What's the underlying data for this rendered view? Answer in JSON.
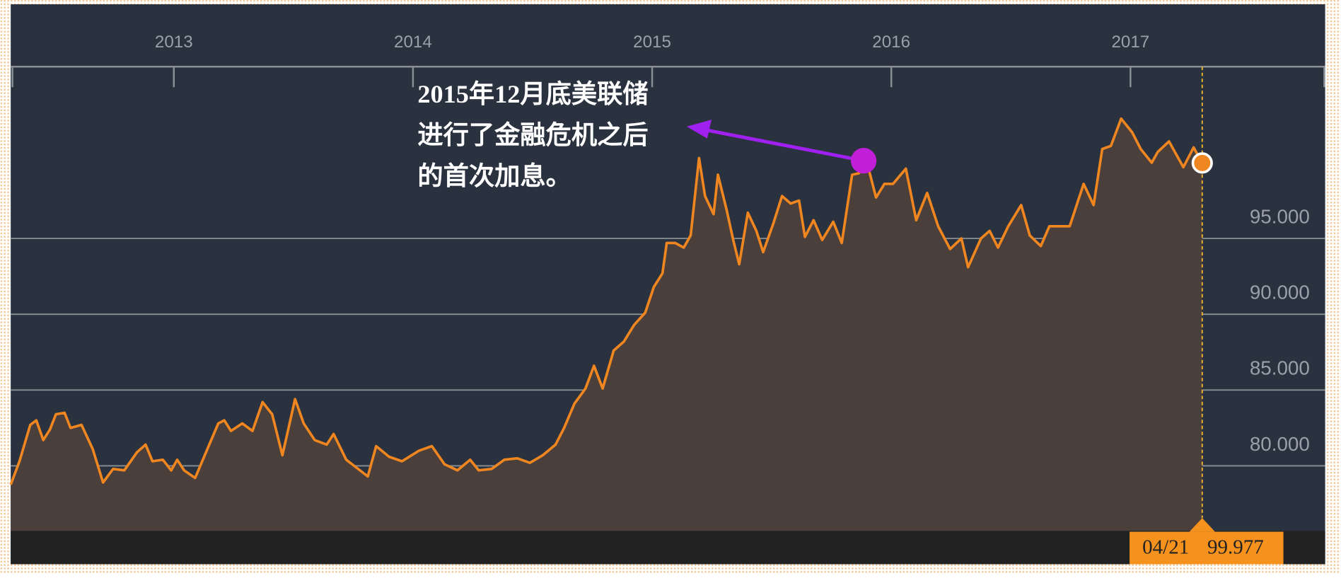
{
  "chart_data": {
    "type": "area-line",
    "x": [
      2012.318,
      2012.354,
      2012.4,
      2012.425,
      2012.454,
      2012.482,
      2012.507,
      2012.543,
      2012.568,
      2012.614,
      2012.661,
      2012.704,
      2012.746,
      2012.793,
      2012.846,
      2012.882,
      2012.911,
      2012.954,
      2012.989,
      2013.014,
      2013.043,
      2013.089,
      2013.132,
      2013.186,
      2013.211,
      2013.239,
      2013.286,
      2013.329,
      2013.371,
      2013.411,
      2013.454,
      2013.507,
      2013.543,
      2013.589,
      2013.639,
      2013.668,
      2013.721,
      2013.811,
      2013.846,
      2013.9,
      2013.954,
      2014.025,
      2014.079,
      2014.132,
      2014.186,
      2014.239,
      2014.275,
      2014.329,
      2014.382,
      2014.436,
      2014.489,
      2014.543,
      2014.596,
      2014.632,
      2014.675,
      2014.721,
      2014.757,
      2014.793,
      2014.839,
      2014.882,
      2014.925,
      2014.971,
      2015.007,
      2015.043,
      2015.061,
      2015.096,
      2015.132,
      2015.161,
      2015.196,
      2015.221,
      2015.257,
      2015.275,
      2015.311,
      2015.339,
      2015.364,
      2015.4,
      2015.436,
      2015.464,
      2015.507,
      2015.543,
      2015.579,
      2015.614,
      2015.639,
      2015.675,
      2015.711,
      2015.757,
      2015.793,
      2015.836,
      2015.864,
      2015.9,
      2015.936,
      2015.971,
      2016.007,
      2016.061,
      2016.104,
      2016.15,
      2016.196,
      2016.246,
      2016.293,
      2016.321,
      2016.375,
      2016.411,
      2016.446,
      2016.489,
      2016.543,
      2016.579,
      2016.625,
      2016.661,
      2016.704,
      2016.746,
      2016.804,
      2016.846,
      2016.882,
      2016.918,
      2016.961,
      2017.007,
      2017.043,
      2017.089,
      2017.114,
      2017.161,
      2017.221,
      2017.264,
      2017.3
    ],
    "series": [
      {
        "color": "#f0861f",
        "fill": "#4a3f3b",
        "values": [
          78.76,
          80.28,
          82.7,
          83.0,
          81.7,
          82.4,
          83.4,
          83.5,
          82.5,
          82.7,
          81.1,
          78.9,
          79.8,
          79.7,
          80.9,
          81.4,
          80.3,
          80.4,
          79.7,
          80.4,
          79.7,
          79.2,
          80.8,
          82.8,
          83.0,
          82.3,
          82.8,
          82.3,
          84.2,
          83.4,
          80.7,
          84.4,
          82.8,
          81.7,
          81.4,
          82.1,
          80.4,
          79.3,
          81.3,
          80.6,
          80.3,
          81.0,
          81.3,
          80.1,
          79.7,
          80.4,
          79.7,
          79.8,
          80.4,
          80.5,
          80.2,
          80.7,
          81.4,
          82.5,
          84.1,
          85.1,
          86.6,
          85.1,
          87.6,
          88.2,
          89.3,
          90.1,
          91.8,
          92.7,
          94.7,
          94.7,
          94.4,
          95.2,
          100.3,
          97.8,
          96.6,
          99.2,
          96.9,
          94.9,
          93.3,
          96.7,
          95.5,
          94.1,
          96.0,
          97.8,
          97.3,
          97.5,
          95.1,
          96.2,
          94.9,
          96.1,
          94.7,
          99.2,
          99.3,
          99.9,
          97.7,
          98.6,
          98.6,
          99.6,
          96.2,
          98.0,
          95.8,
          94.3,
          95.0,
          93.1,
          95.0,
          95.5,
          94.4,
          95.8,
          97.2,
          95.2,
          94.5,
          95.8,
          95.8,
          95.8,
          98.6,
          97.2,
          100.9,
          101.1,
          102.9,
          102.0,
          100.9,
          100.0,
          100.7,
          101.4,
          99.7,
          101.0,
          99.977
        ]
      }
    ],
    "xlim": [
      2012.318,
      2017.814
    ],
    "xticks": [
      2013,
      2014,
      2015,
      2016,
      2017
    ],
    "ylim": [
      75.71,
      106.33
    ],
    "yticks": [
      {
        "value": 80,
        "label": "80.000"
      },
      {
        "value": 85,
        "label": "85.000"
      },
      {
        "value": 90,
        "label": "90.000"
      },
      {
        "value": 95,
        "label": "95.000"
      }
    ],
    "grid": true,
    "annotation": {
      "lines": [
        "2015年12月底美联储",
        "进行了金融危机之后",
        "的首次加息。"
      ],
      "color": "#a020f0"
    },
    "tooltip": {
      "x_label": "04/21",
      "value": 99.977,
      "color": "#f5921e"
    }
  }
}
